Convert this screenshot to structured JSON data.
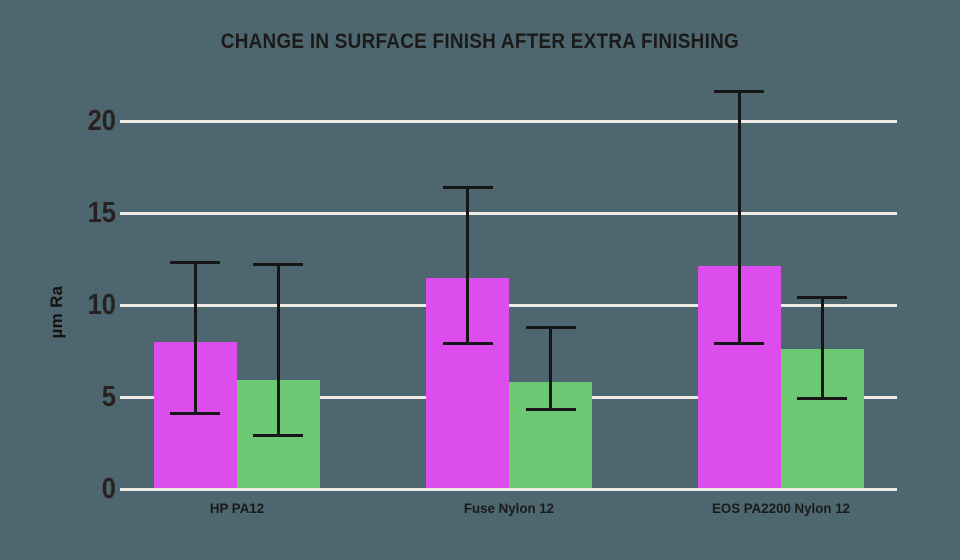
{
  "chart_data": {
    "type": "bar",
    "title": "CHANGE IN SURFACE FINISH AFTER EXTRA FINISHING",
    "ylabel": "µm Ra",
    "xlabel": "",
    "categories": [
      "HP PA12",
      "Fuse Nylon 12",
      "EOS PA2200 Nylon 12"
    ],
    "yticks": [
      0,
      5,
      10,
      15,
      20
    ],
    "ylim": [
      0,
      22
    ],
    "grid": true,
    "legend": "none",
    "series": [
      {
        "name": "magenta",
        "color": "#dd4dee",
        "values": [
          8.0,
          11.5,
          12.1
        ],
        "error_low": [
          4.1,
          7.9,
          7.9
        ],
        "error_high": [
          12.3,
          16.4,
          21.6
        ]
      },
      {
        "name": "green",
        "color": "#6cc873",
        "values": [
          5.9,
          5.8,
          7.6
        ],
        "error_low": [
          2.9,
          4.3,
          4.9
        ],
        "error_high": [
          12.2,
          8.8,
          10.4
        ]
      }
    ]
  },
  "colors": {
    "background": "#4d666f",
    "gridline": "#f1ede6",
    "error_bar": "#161616",
    "text": "#1c1a19"
  }
}
